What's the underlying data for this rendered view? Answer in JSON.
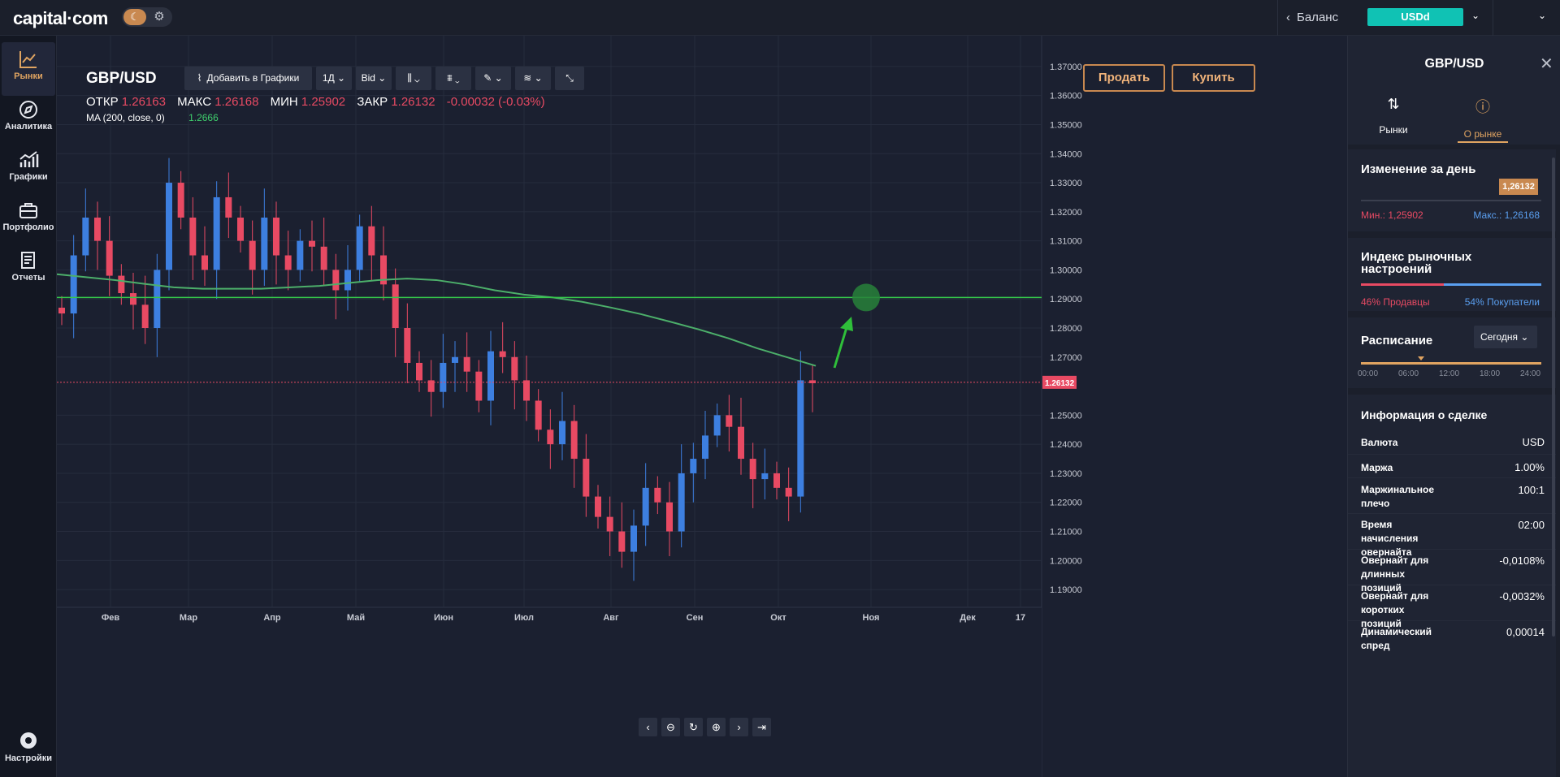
{
  "app": {
    "logo": "capital·com",
    "balance_label": "Баланс",
    "account_currency": "USDd"
  },
  "sidebar": {
    "items": [
      {
        "label": "Рынки",
        "icon": "chart-line-icon"
      },
      {
        "label": "Аналитика",
        "icon": "compass-icon"
      },
      {
        "label": "Графики",
        "icon": "bar-chart-icon"
      },
      {
        "label": "Портфолио",
        "icon": "briefcase-icon"
      },
      {
        "label": "Отчеты",
        "icon": "document-icon"
      }
    ],
    "settings_label": "Настройки"
  },
  "chart_header": {
    "symbol": "GBP/USD",
    "toolbar": {
      "add_chart": "Добавить в Графики",
      "timeframe": "1Д",
      "price_type": "Bid"
    },
    "ohlc": {
      "open_label": "ОТКР",
      "open": "1.26163",
      "high_label": "МАКС",
      "high": "1.26168",
      "low_label": "МИН",
      "low": "1.25902",
      "close_label": "ЗАКР",
      "close": "1.26132",
      "change": "-0.00032 (-0.03%)"
    },
    "ma": {
      "label": "MA (200, close, 0)",
      "value": "1.2666"
    },
    "sell_label": "Продать",
    "buy_label": "Купить"
  },
  "chart_data": {
    "type": "candlestick",
    "ylim": [
      1.185,
      1.375
    ],
    "y_ticks": [
      "1.37000",
      "1.36000",
      "1.35000",
      "1.34000",
      "1.33000",
      "1.32000",
      "1.31000",
      "1.30000",
      "1.29000",
      "1.28000",
      "1.27000",
      "1.25000",
      "1.24000",
      "1.23000",
      "1.22000",
      "1.21000",
      "1.20000",
      "1.19000"
    ],
    "x_ticks": [
      "Фев",
      "Мар",
      "Апр",
      "Май",
      "Июн",
      "Июл",
      "Авг",
      "Сен",
      "Окт",
      "Ноя",
      "Дек",
      "17"
    ],
    "current_price": "1.26132",
    "horizontal_level": 1.2905,
    "ma_values": [
      1.2985,
      1.2975,
      1.2965,
      1.2952,
      1.294,
      1.2935,
      1.2935,
      1.2935,
      1.294,
      1.2945,
      1.2955,
      1.2965,
      1.297,
      1.2965,
      1.295,
      1.293,
      1.2915,
      1.2905,
      1.289,
      1.287,
      1.2848,
      1.2822,
      1.2795,
      1.2765,
      1.273,
      1.27,
      1.267
    ],
    "series_close": [
      1.285,
      1.305,
      1.318,
      1.31,
      1.298,
      1.292,
      1.288,
      1.28,
      1.3,
      1.33,
      1.318,
      1.305,
      1.3,
      1.325,
      1.318,
      1.31,
      1.3,
      1.318,
      1.305,
      1.3,
      1.31,
      1.308,
      1.3,
      1.293,
      1.3,
      1.315,
      1.305,
      1.295,
      1.28,
      1.268,
      1.262,
      1.258,
      1.268,
      1.27,
      1.265,
      1.255,
      1.272,
      1.27,
      1.262,
      1.255,
      1.245,
      1.24,
      1.248,
      1.235,
      1.222,
      1.215,
      1.21,
      1.203,
      1.212,
      1.225,
      1.22,
      1.21,
      1.23,
      1.235,
      1.243,
      1.25,
      1.246,
      1.235,
      1.228,
      1.23,
      1.225,
      1.222,
      1.262,
      1.261
    ]
  },
  "right_panel": {
    "title": "GBP/USD",
    "tabs": [
      "Рынки",
      "О рынке"
    ],
    "day_change": {
      "title": "Изменение за день",
      "price": "1,26132",
      "min_label": "Мин.: 1,25902",
      "max_label": "Макс.: 1,26168"
    },
    "sentiment": {
      "title": "Индекс рыночных настроений",
      "sellers": "46% Продавцы",
      "buyers": "54% Покупатели",
      "sell_fraction": 0.46
    },
    "schedule": {
      "title": "Расписание",
      "select_value": "Сегодня",
      "ticks": [
        "00:00",
        "06:00",
        "12:00",
        "18:00",
        "24:00"
      ]
    },
    "deal_info": {
      "title": "Информация о сделке",
      "rows": [
        {
          "label": "Валюта",
          "value": "USD"
        },
        {
          "label": "Маржа",
          "value": "1.00%"
        },
        {
          "label": "Маржинальное плечо",
          "value": "100:1"
        },
        {
          "label": "Время начисления овернайта",
          "value": "02:00"
        },
        {
          "label": "Овернайт для длинных позиций",
          "value": "-0,0108%"
        },
        {
          "label": "Овернайт для коротких позиций",
          "value": "-0,0032%"
        },
        {
          "label": "Динамический спред",
          "value": "0,00014"
        }
      ]
    }
  },
  "colors": {
    "up": "#3d7fe0",
    "down": "#e84a63",
    "ma": "#4caf6a",
    "level": "#35c94a",
    "accent": "#e0a461"
  }
}
